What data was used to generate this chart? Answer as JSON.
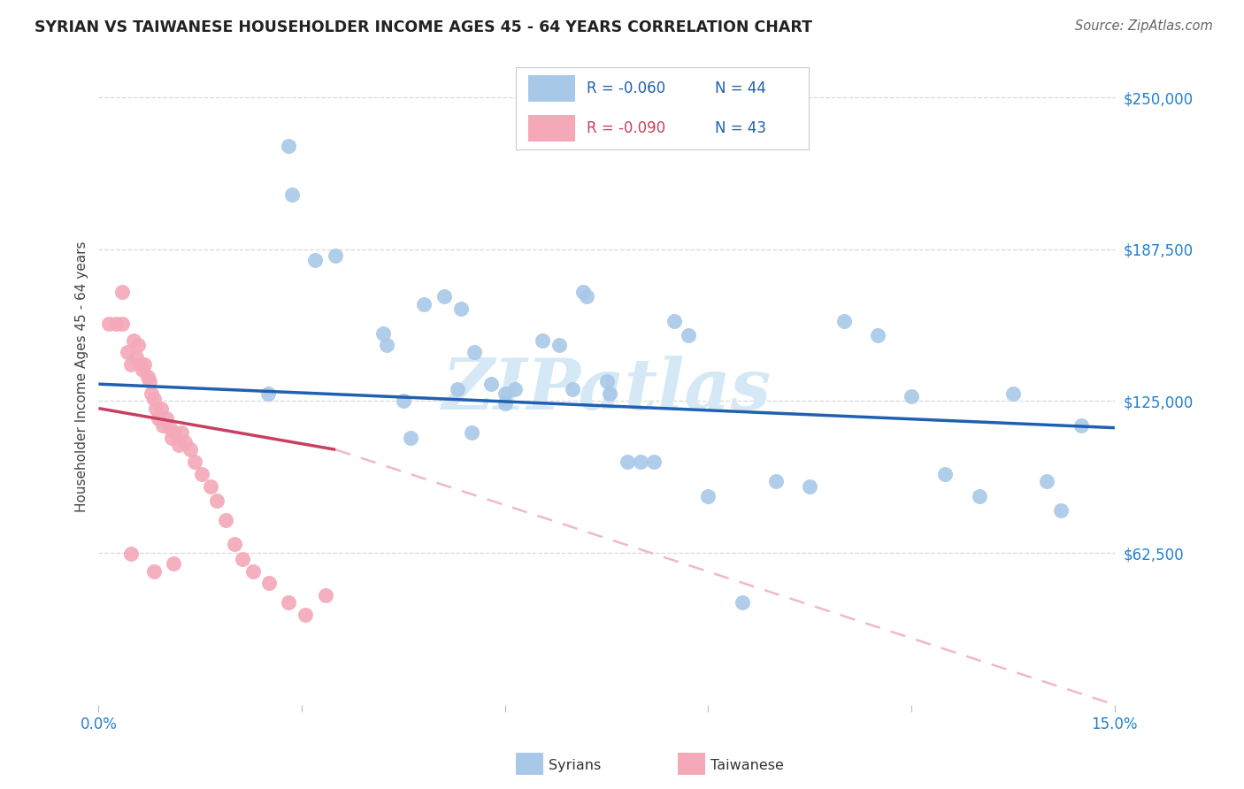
{
  "title": "SYRIAN VS TAIWANESE HOUSEHOLDER INCOME AGES 45 - 64 YEARS CORRELATION CHART",
  "source": "Source: ZipAtlas.com",
  "ylabel": "Householder Income Ages 45 - 64 years",
  "xlim_min": 0.0,
  "xlim_max": 15.0,
  "ylim_min": 0,
  "ylim_max": 270000,
  "yticks": [
    62500,
    125000,
    187500,
    250000
  ],
  "ytick_labels": [
    "$62,500",
    "$125,000",
    "$187,500",
    "$250,000"
  ],
  "xtick_positions": [
    0.0,
    3.0,
    6.0,
    9.0,
    12.0,
    15.0
  ],
  "xtick_labels": [
    "0.0%",
    "",
    "",
    "",
    "",
    "15.0%"
  ],
  "syrian_R": "-0.060",
  "syrian_N": 44,
  "taiwanese_R": "-0.090",
  "taiwanese_N": 43,
  "syrian_color": "#a8c8e8",
  "taiwanese_color": "#f4a8b8",
  "syrian_line_color": "#2060b0",
  "taiwanese_solid_color": "#c84060",
  "taiwanese_dash_color": "#f0b8c8",
  "watermark_text": "ZIPatlas",
  "watermark_color": "#d4e8f5",
  "bg_color": "#ffffff",
  "title_color": "#222222",
  "source_color": "#666666",
  "axis_label_color": "#444444",
  "tick_color": "#2080d0",
  "grid_color": "#d8d8d8",
  "legend_r_color_syrian": "#2060b0",
  "legend_r_color_taiwanese": "#c84060",
  "legend_n_color": "#2060b0",
  "syrian_line_x0": 0.0,
  "syrian_line_y0": 132000,
  "syrian_line_x1": 15.0,
  "syrian_line_y1": 114000,
  "taiwanese_solid_x0": 0.0,
  "taiwanese_solid_y0": 122000,
  "taiwanese_solid_x1": 3.5,
  "taiwanese_solid_y1": 105000,
  "taiwanese_dash_x0": 3.5,
  "taiwanese_dash_y0": 105000,
  "taiwanese_dash_x1": 15.0,
  "taiwanese_dash_y1": 0,
  "syrians_x": [
    2.8,
    2.85,
    3.5,
    4.2,
    4.25,
    4.8,
    5.1,
    5.35,
    5.55,
    5.8,
    6.0,
    6.15,
    6.55,
    6.8,
    7.15,
    7.2,
    7.5,
    7.55,
    8.5,
    8.7,
    9.0,
    9.5,
    10.5,
    11.0,
    11.5,
    12.0,
    12.5,
    13.5,
    14.2,
    14.5,
    3.2,
    5.3,
    5.5,
    6.0,
    7.8,
    8.0,
    10.0,
    13.0,
    14.0,
    2.5,
    4.5,
    4.6,
    7.0,
    8.2
  ],
  "syrians_y": [
    230000,
    210000,
    185000,
    153000,
    148000,
    165000,
    168000,
    163000,
    145000,
    132000,
    128000,
    130000,
    150000,
    148000,
    170000,
    168000,
    133000,
    128000,
    158000,
    152000,
    86000,
    42000,
    90000,
    158000,
    152000,
    127000,
    95000,
    128000,
    80000,
    115000,
    183000,
    130000,
    112000,
    124000,
    100000,
    100000,
    92000,
    86000,
    92000,
    128000,
    125000,
    110000,
    130000,
    100000
  ],
  "taiwanese_x": [
    0.15,
    0.25,
    0.35,
    0.42,
    0.48,
    0.52,
    0.55,
    0.58,
    0.62,
    0.65,
    0.68,
    0.72,
    0.75,
    0.78,
    0.82,
    0.85,
    0.88,
    0.92,
    0.95,
    1.0,
    1.05,
    1.08,
    1.12,
    1.18,
    1.22,
    1.28,
    1.35,
    1.42,
    1.52,
    1.65,
    1.75,
    1.88,
    2.0,
    2.12,
    2.28,
    2.52,
    2.8,
    3.05,
    3.35,
    0.35,
    0.48,
    0.82,
    1.1
  ],
  "taiwanese_y": [
    157000,
    157000,
    157000,
    145000,
    140000,
    150000,
    143000,
    148000,
    140000,
    138000,
    140000,
    135000,
    133000,
    128000,
    126000,
    122000,
    118000,
    122000,
    115000,
    118000,
    114000,
    110000,
    112000,
    107000,
    112000,
    108000,
    105000,
    100000,
    95000,
    90000,
    84000,
    76000,
    66000,
    60000,
    55000,
    50000,
    42000,
    37000,
    45000,
    170000,
    62000,
    55000,
    58000
  ]
}
